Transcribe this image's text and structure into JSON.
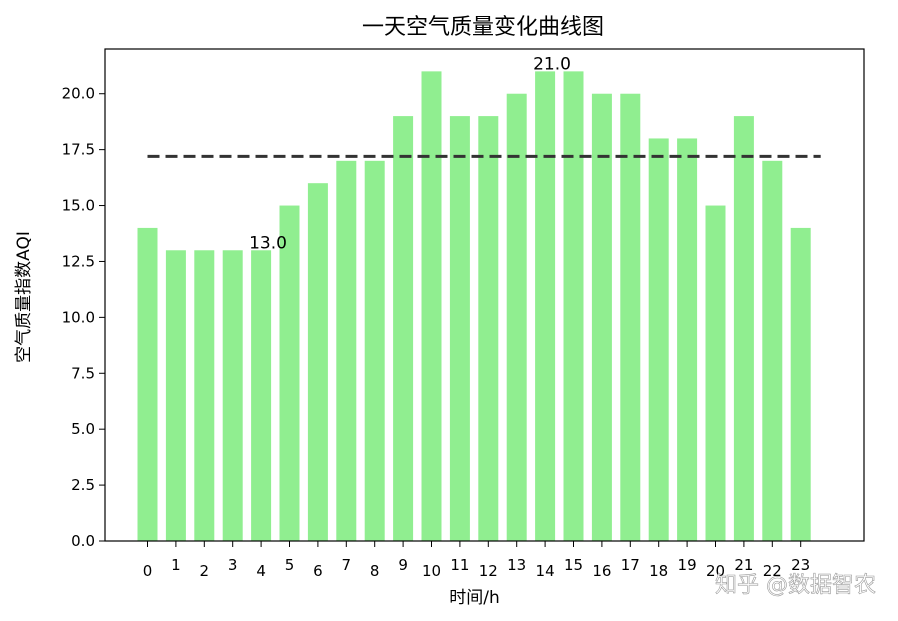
{
  "chart_data": {
    "type": "bar",
    "title": "一天空气质量变化曲线图",
    "xlabel": "时间/h",
    "ylabel": "空气质量指数AQI",
    "categories": [
      "0",
      "1",
      "2",
      "3",
      "4",
      "5",
      "6",
      "7",
      "8",
      "9",
      "10",
      "11",
      "12",
      "13",
      "14",
      "15",
      "16",
      "17",
      "18",
      "19",
      "20",
      "21",
      "22",
      "23"
    ],
    "values": [
      14,
      13,
      13,
      13,
      13,
      15,
      16,
      17,
      17,
      19,
      21,
      19,
      19,
      20,
      21,
      21,
      20,
      20,
      18,
      18,
      15,
      19,
      17,
      14
    ],
    "ylim": [
      0,
      22
    ],
    "yticks": [
      "0.0",
      "2.5",
      "5.0",
      "7.5",
      "10.0",
      "12.5",
      "15.0",
      "17.5",
      "20.0"
    ],
    "mean_line": 17.2,
    "annotations": [
      {
        "category": "4",
        "value": 13,
        "text": "13.0"
      },
      {
        "category": "14",
        "value": 21,
        "text": "21.0"
      }
    ],
    "bar_color": "#90ee90",
    "mean_line_color": "#333333",
    "grid": false
  },
  "watermark": "知乎 @数据智农"
}
